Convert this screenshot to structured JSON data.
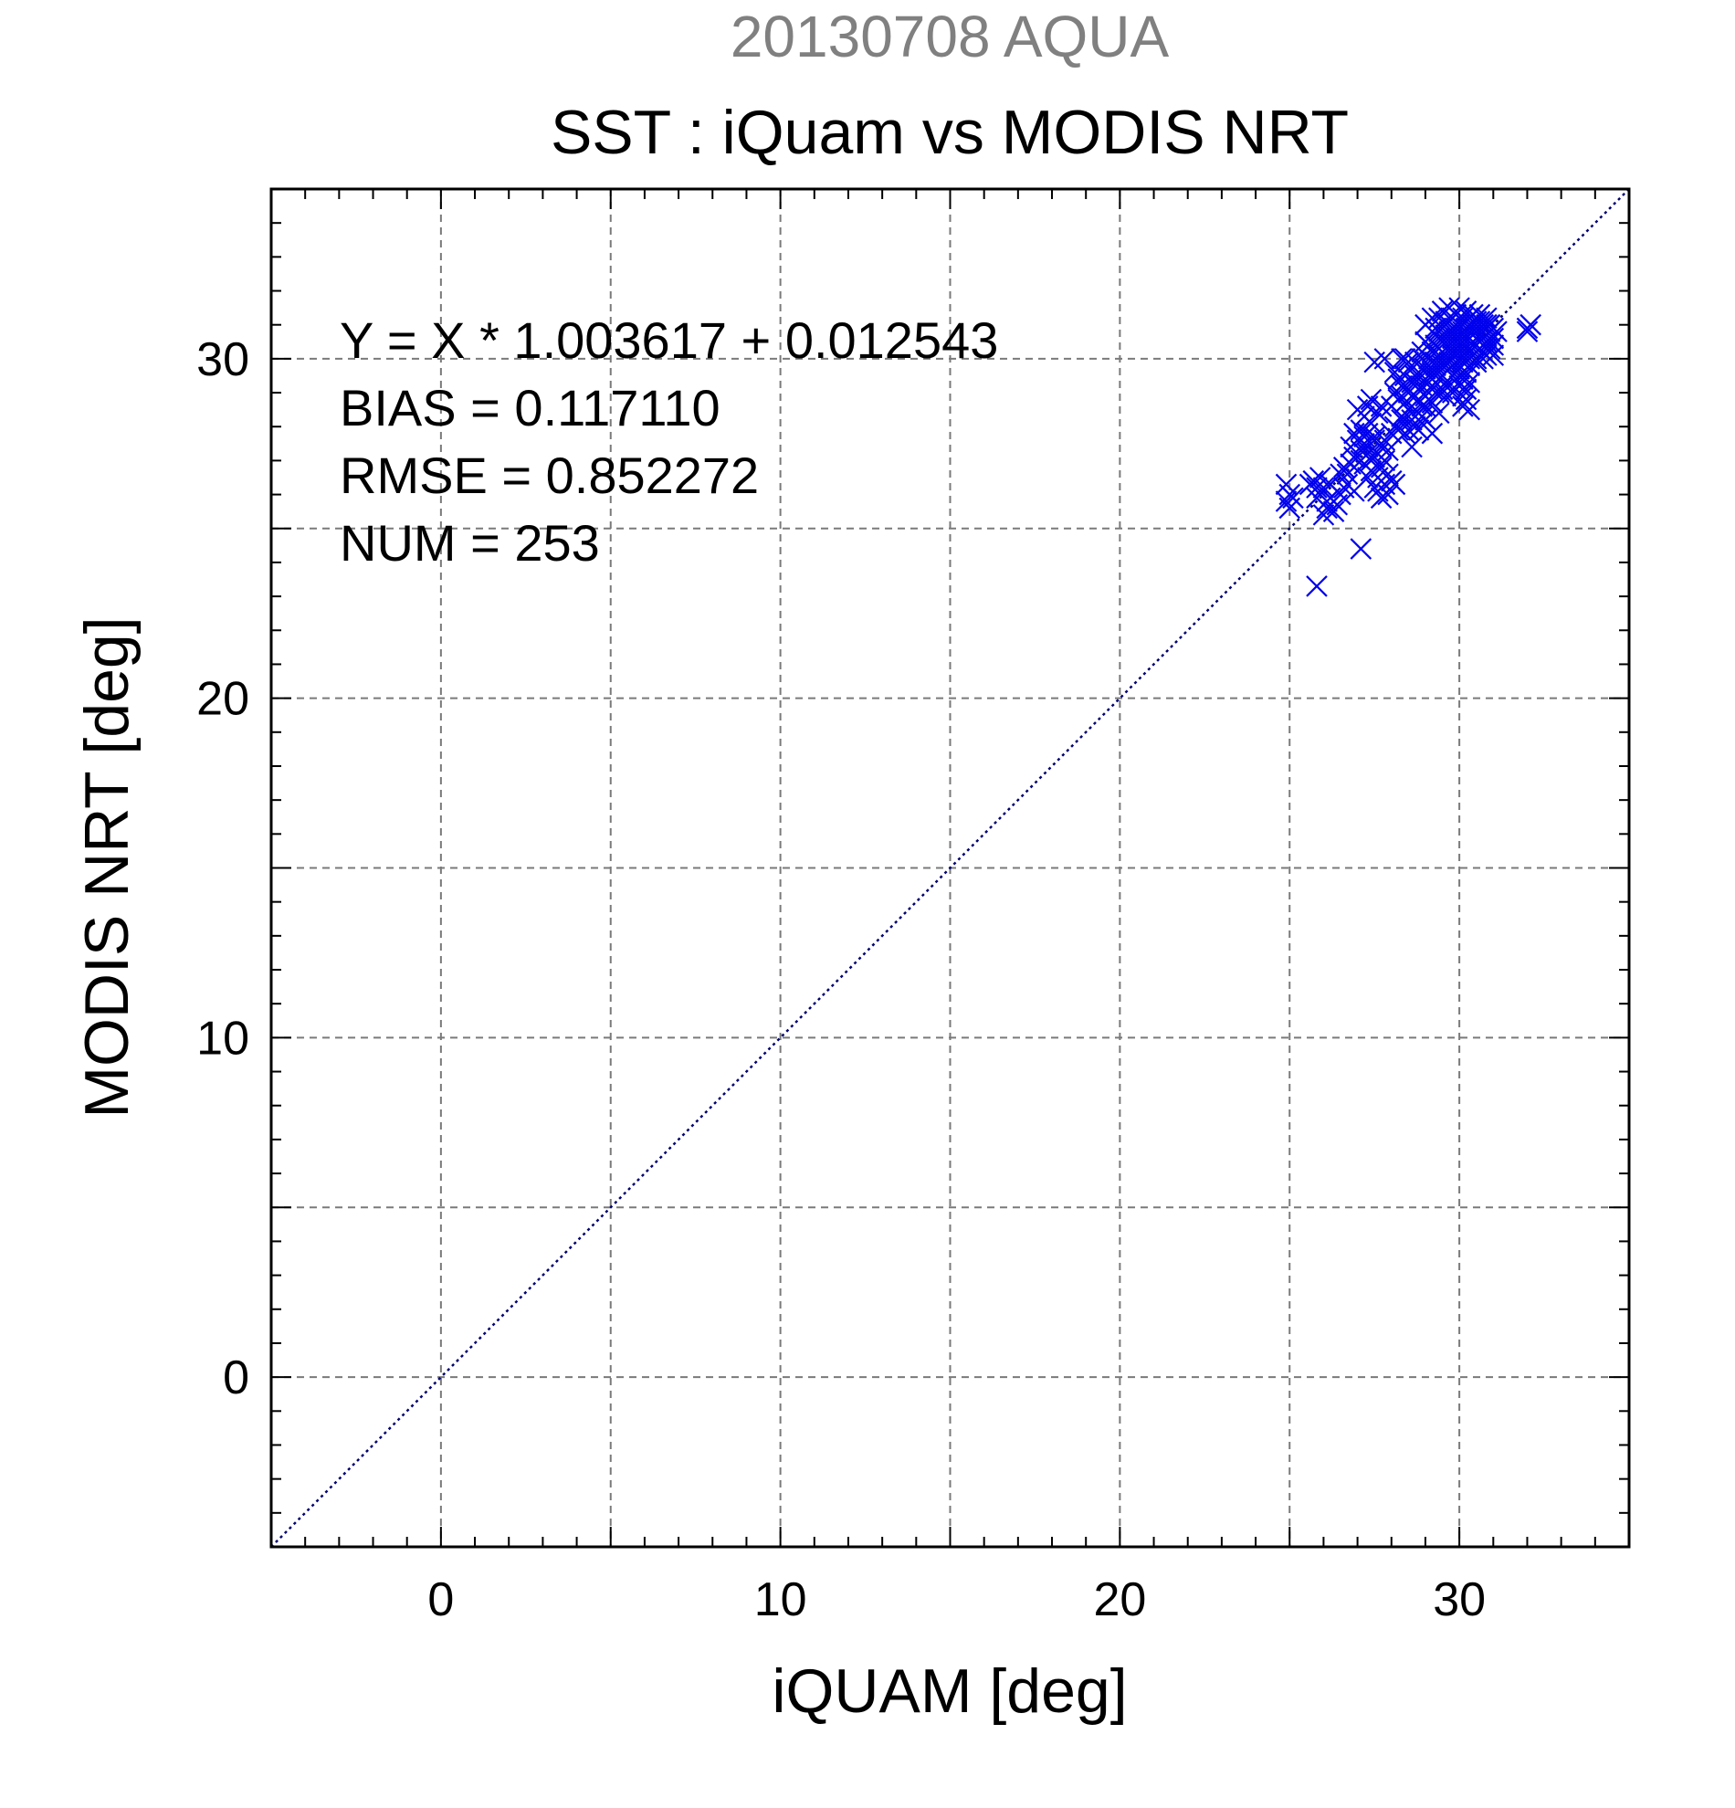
{
  "chart_data": {
    "type": "scatter",
    "super_title": "20130708 AQUA",
    "title": "SST : iQuam vs MODIS NRT",
    "xlabel": "iQUAM [deg]",
    "ylabel": "MODIS NRT [deg]",
    "xlim": [
      -5,
      35
    ],
    "ylim": [
      -5,
      35
    ],
    "xticks": [
      0,
      10,
      20,
      30
    ],
    "yticks": [
      0,
      10,
      20,
      30
    ],
    "grid_step": 5,
    "grid": true,
    "annotations": [
      "Y = X * 1.003617 + 0.012543",
      "BIAS = 0.117110",
      "RMSE = 0.852272",
      "NUM = 253"
    ],
    "one_to_one_line": {
      "x": [
        -5,
        35
      ],
      "y": [
        -5,
        35
      ],
      "style": "dotted"
    },
    "series": [
      {
        "marker": "x",
        "color": "#0000ee",
        "points": [
          [
            24.9,
            26.3
          ],
          [
            24.9,
            25.8
          ],
          [
            25.0,
            25.6
          ],
          [
            25.1,
            25.9
          ],
          [
            25.0,
            26.0
          ],
          [
            25.7,
            26.4
          ],
          [
            25.8,
            26.2
          ],
          [
            25.9,
            26.5
          ],
          [
            26.0,
            26.2
          ],
          [
            26.1,
            25.8
          ],
          [
            26.2,
            26.3
          ],
          [
            25.8,
            23.3
          ],
          [
            26.1,
            25.6
          ],
          [
            26.3,
            25.5
          ],
          [
            26.5,
            26.0
          ],
          [
            26.5,
            26.6
          ],
          [
            26.6,
            26.8
          ],
          [
            26.8,
            26.9
          ],
          [
            26.7,
            26.3
          ],
          [
            26.9,
            27.1
          ],
          [
            27.0,
            27.6
          ],
          [
            27.1,
            24.4
          ],
          [
            27.1,
            27.9
          ],
          [
            27.2,
            28.3
          ],
          [
            27.3,
            27.4
          ],
          [
            27.3,
            27.8
          ],
          [
            27.4,
            28.1
          ],
          [
            27.5,
            27.6
          ],
          [
            27.5,
            27.1
          ],
          [
            27.6,
            26.1
          ],
          [
            27.6,
            26.5
          ],
          [
            27.7,
            25.9
          ],
          [
            27.7,
            27.4
          ],
          [
            27.8,
            26.3
          ],
          [
            27.8,
            27.6
          ],
          [
            27.9,
            27.3
          ],
          [
            27.9,
            26.0
          ],
          [
            28.0,
            26.4
          ],
          [
            28.0,
            27.8
          ],
          [
            28.1,
            28.0
          ],
          [
            27.2,
            27.7
          ],
          [
            27.3,
            28.6
          ],
          [
            27.4,
            28.8
          ],
          [
            27.5,
            27.7
          ],
          [
            27.6,
            28.4
          ],
          [
            27.7,
            28.6
          ],
          [
            27.5,
            29.9
          ],
          [
            27.8,
            30.0
          ],
          [
            27.0,
            28.5
          ],
          [
            27.1,
            27.3
          ],
          [
            27.2,
            26.9
          ],
          [
            27.3,
            27.2
          ],
          [
            26.9,
            27.8
          ],
          [
            26.8,
            27.4
          ],
          [
            27.4,
            26.7
          ],
          [
            27.5,
            26.2
          ],
          [
            28.1,
            26.3
          ],
          [
            28.2,
            27.9
          ],
          [
            28.3,
            28.3
          ],
          [
            28.3,
            28.9
          ],
          [
            28.4,
            29.5
          ],
          [
            28.4,
            30.0
          ],
          [
            28.5,
            29.9
          ],
          [
            28.5,
            29.0
          ],
          [
            28.6,
            28.4
          ],
          [
            28.6,
            29.3
          ],
          [
            28.7,
            28.9
          ],
          [
            28.7,
            29.9
          ],
          [
            28.8,
            29.5
          ],
          [
            28.8,
            28.8
          ],
          [
            28.9,
            29.2
          ],
          [
            28.9,
            30.2
          ],
          [
            29.0,
            29.7
          ],
          [
            29.0,
            28.9
          ],
          [
            29.1,
            29.3
          ],
          [
            29.1,
            30.4
          ],
          [
            29.2,
            29.6
          ],
          [
            29.2,
            28.7
          ],
          [
            29.3,
            29.8
          ],
          [
            29.3,
            30.9
          ],
          [
            28.2,
            28.8
          ],
          [
            28.3,
            29.2
          ],
          [
            28.4,
            28.7
          ],
          [
            28.5,
            28.5
          ],
          [
            28.6,
            28.9
          ],
          [
            28.7,
            29.3
          ],
          [
            28.8,
            29.1
          ],
          [
            28.9,
            28.6
          ],
          [
            28.4,
            27.8
          ],
          [
            28.6,
            27.4
          ],
          [
            28.8,
            27.9
          ],
          [
            29.0,
            28.2
          ],
          [
            29.2,
            27.8
          ],
          [
            29.4,
            28.4
          ],
          [
            28.1,
            29.6
          ],
          [
            28.3,
            30.0
          ],
          [
            29.4,
            30.1
          ],
          [
            29.4,
            29.4
          ],
          [
            29.5,
            30.5
          ],
          [
            29.5,
            29.8
          ],
          [
            29.6,
            30.7
          ],
          [
            29.6,
            29.9
          ],
          [
            29.7,
            30.3
          ],
          [
            29.7,
            30.8
          ],
          [
            29.8,
            30.6
          ],
          [
            29.8,
            30.1
          ],
          [
            29.9,
            30.9
          ],
          [
            29.9,
            30.4
          ],
          [
            30.0,
            31.0
          ],
          [
            30.0,
            30.2
          ],
          [
            30.1,
            30.8
          ],
          [
            30.1,
            30.5
          ],
          [
            30.2,
            31.1
          ],
          [
            30.2,
            30.6
          ],
          [
            30.3,
            30.9
          ],
          [
            30.3,
            30.3
          ],
          [
            30.4,
            31.0
          ],
          [
            30.4,
            30.7
          ],
          [
            30.5,
            30.8
          ],
          [
            30.5,
            30.4
          ],
          [
            30.6,
            31.1
          ],
          [
            30.6,
            30.9
          ],
          [
            30.7,
            30.6
          ],
          [
            30.7,
            30.2
          ],
          [
            30.8,
            30.7
          ],
          [
            30.8,
            31.0
          ],
          [
            30.9,
            30.5
          ],
          [
            31.0,
            30.6
          ],
          [
            29.4,
            31.2
          ],
          [
            29.5,
            31.4
          ],
          [
            29.6,
            31.0
          ],
          [
            29.7,
            31.5
          ],
          [
            29.8,
            31.2
          ],
          [
            29.9,
            31.3
          ],
          [
            30.0,
            31.5
          ],
          [
            30.1,
            31.2
          ],
          [
            30.2,
            31.4
          ],
          [
            30.3,
            31.2
          ],
          [
            30.4,
            31.3
          ],
          [
            30.5,
            31.1
          ],
          [
            30.6,
            31.3
          ],
          [
            30.7,
            31.0
          ],
          [
            30.8,
            31.2
          ],
          [
            30.9,
            31.0
          ],
          [
            29.5,
            29.5
          ],
          [
            29.6,
            29.3
          ],
          [
            29.7,
            29.7
          ],
          [
            29.8,
            29.5
          ],
          [
            29.9,
            29.9
          ],
          [
            30.0,
            29.7
          ],
          [
            30.1,
            29.9
          ],
          [
            30.2,
            29.6
          ],
          [
            30.3,
            29.8
          ],
          [
            30.4,
            30.1
          ],
          [
            30.5,
            29.9
          ],
          [
            30.6,
            30.3
          ],
          [
            30.7,
            30.0
          ],
          [
            30.8,
            30.3
          ],
          [
            31.0,
            30.1
          ],
          [
            31.1,
            30.8
          ],
          [
            30.1,
            28.6
          ],
          [
            30.2,
            28.8
          ],
          [
            30.3,
            28.5
          ],
          [
            30.1,
            28.9
          ],
          [
            29.3,
            30.4
          ],
          [
            29.4,
            30.8
          ],
          [
            29.5,
            30.2
          ],
          [
            29.6,
            30.5
          ],
          [
            29.7,
            30.0
          ],
          [
            29.8,
            29.8
          ],
          [
            29.9,
            30.6
          ],
          [
            30.0,
            30.4
          ],
          [
            30.1,
            30.1
          ],
          [
            30.2,
            30.3
          ],
          [
            30.3,
            30.6
          ],
          [
            30.4,
            30.4
          ],
          [
            30.5,
            30.6
          ],
          [
            30.6,
            30.5
          ],
          [
            30.7,
            30.4
          ],
          [
            30.8,
            30.5
          ],
          [
            30.9,
            30.8
          ],
          [
            31.0,
            30.9
          ],
          [
            30.9,
            30.3
          ],
          [
            30.8,
            30.9
          ],
          [
            32.0,
            30.8
          ],
          [
            32.1,
            31.0
          ],
          [
            32.0,
            30.9
          ],
          [
            29.0,
            30.5
          ],
          [
            29.1,
            30.0
          ],
          [
            29.2,
            30.2
          ],
          [
            29.3,
            29.9
          ],
          [
            28.9,
            30.0
          ],
          [
            27.2,
            27.5
          ],
          [
            27.4,
            27.0
          ],
          [
            27.6,
            27.2
          ],
          [
            27.8,
            27.0
          ],
          [
            27.9,
            26.6
          ],
          [
            27.7,
            26.8
          ],
          [
            27.3,
            26.5
          ],
          [
            27.1,
            27.0
          ],
          [
            26.7,
            26.6
          ],
          [
            26.9,
            26.1
          ],
          [
            26.6,
            26.2
          ],
          [
            26.4,
            25.7
          ],
          [
            26.2,
            25.9
          ],
          [
            26.0,
            25.4
          ],
          [
            25.8,
            25.9
          ],
          [
            25.6,
            26.3
          ],
          [
            28.0,
            28.6
          ],
          [
            28.1,
            29.0
          ],
          [
            28.2,
            29.4
          ],
          [
            28.3,
            28.2
          ],
          [
            28.4,
            29.2
          ],
          [
            28.5,
            27.9
          ],
          [
            28.6,
            28.2
          ],
          [
            28.7,
            28.0
          ],
          [
            28.8,
            28.4
          ],
          [
            28.9,
            28.3
          ],
          [
            29.0,
            28.6
          ],
          [
            29.1,
            28.8
          ],
          [
            29.2,
            29.1
          ],
          [
            29.3,
            29.3
          ],
          [
            29.4,
            29.0
          ],
          [
            29.5,
            29.1
          ],
          [
            29.6,
            28.9
          ],
          [
            29.7,
            29.2
          ],
          [
            29.8,
            29.0
          ],
          [
            29.9,
            29.4
          ],
          [
            30.0,
            29.2
          ],
          [
            30.1,
            29.4
          ],
          [
            30.2,
            29.1
          ],
          [
            30.3,
            29.3
          ],
          [
            29.0,
            31.0
          ],
          [
            29.2,
            31.2
          ],
          [
            29.4,
            30.6
          ],
          [
            29.6,
            31.1
          ],
          [
            29.8,
            30.9
          ],
          [
            30.0,
            30.7
          ],
          [
            30.2,
            30.9
          ],
          [
            30.4,
            30.9
          ],
          [
            30.6,
            30.7
          ],
          [
            30.8,
            30.1
          ],
          [
            31.0,
            30.4
          ],
          [
            30.5,
            30.0
          ],
          [
            30.3,
            30.0
          ],
          [
            30.1,
            30.0
          ],
          [
            29.9,
            30.1
          ],
          [
            29.7,
            29.9
          ],
          [
            29.5,
            29.9
          ],
          [
            29.3,
            29.6
          ],
          [
            29.1,
            29.5
          ],
          [
            28.9,
            29.7
          ],
          [
            28.7,
            29.5
          ]
        ]
      }
    ]
  }
}
